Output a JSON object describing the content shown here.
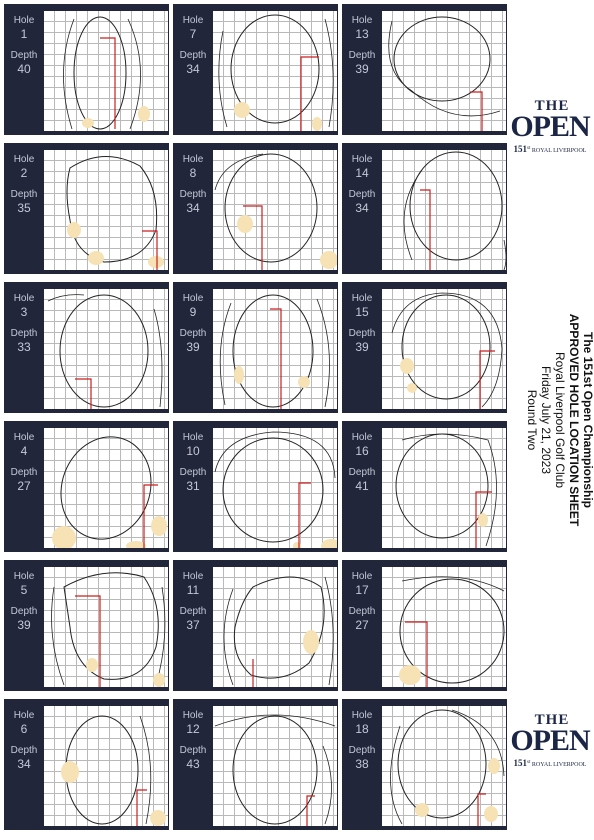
{
  "labels": {
    "hole": "Hole",
    "depth": "Depth"
  },
  "holes": [
    {
      "hole": "1",
      "depth": "40"
    },
    {
      "hole": "2",
      "depth": "35"
    },
    {
      "hole": "3",
      "depth": "33"
    },
    {
      "hole": "4",
      "depth": "27"
    },
    {
      "hole": "5",
      "depth": "39"
    },
    {
      "hole": "6",
      "depth": "34"
    },
    {
      "hole": "7",
      "depth": "34"
    },
    {
      "hole": "8",
      "depth": "34"
    },
    {
      "hole": "9",
      "depth": "39"
    },
    {
      "hole": "10",
      "depth": "31"
    },
    {
      "hole": "11",
      "depth": "37"
    },
    {
      "hole": "12",
      "depth": "43"
    },
    {
      "hole": "13",
      "depth": "39"
    },
    {
      "hole": "14",
      "depth": "34"
    },
    {
      "hole": "15",
      "depth": "39"
    },
    {
      "hole": "16",
      "depth": "41"
    },
    {
      "hole": "17",
      "depth": "27"
    },
    {
      "hole": "18",
      "depth": "38"
    }
  ],
  "title": {
    "line1": "The 151st Open Championship",
    "line2": "APPROVED HOLE LOCATION SHEET",
    "line3": "Royal Liverpool Golf Club",
    "line4": "Friday July 21, 2023",
    "line5": "Round Two"
  },
  "logo": {
    "the": "THE",
    "open": "OPEN",
    "number": "151",
    "suffix": "st",
    "venue": "ROYAL LIVERPOOL"
  },
  "colors": {
    "card_bg": "#21263b",
    "label": "#c4c8d6",
    "bunker": "#f6e2b4",
    "pin_line": "#cc1f1f",
    "logo": "#1b2545"
  }
}
